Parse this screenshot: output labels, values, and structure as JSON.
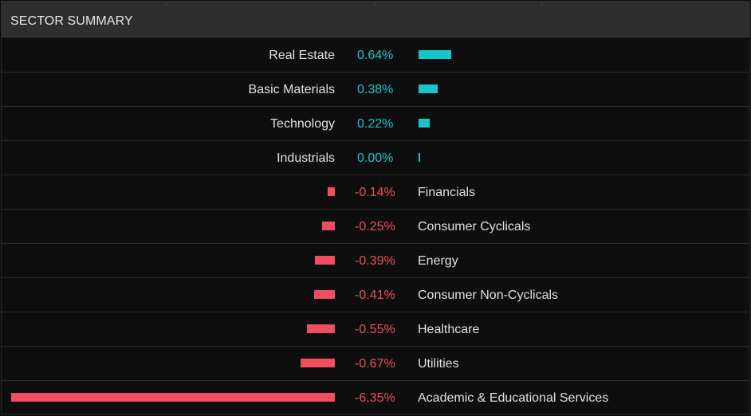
{
  "header": {
    "title": "SECTOR SUMMARY"
  },
  "colors": {
    "positive": "#16c6cc",
    "negative": "#f04e5e"
  },
  "chart_data": {
    "type": "bar",
    "orientation": "horizontal-diverging",
    "categories": [
      "Real Estate",
      "Basic Materials",
      "Technology",
      "Industrials",
      "Financials",
      "Consumer Cyclicals",
      "Energy",
      "Consumer Non-Cyclicals",
      "Healthcare",
      "Utilities",
      "Academic & Educational Services"
    ],
    "values": [
      0.64,
      0.38,
      0.22,
      0.0,
      -0.14,
      -0.25,
      -0.39,
      -0.41,
      -0.55,
      -0.67,
      -6.35
    ],
    "labels": [
      "0.64%",
      "0.38%",
      "0.22%",
      "0.00%",
      "-0.14%",
      "-0.25%",
      "-0.39%",
      "-0.41%",
      "-0.55%",
      "-0.67%",
      "-6.35%"
    ],
    "title": "SECTOR SUMMARY",
    "xlabel": "",
    "ylabel": ""
  }
}
